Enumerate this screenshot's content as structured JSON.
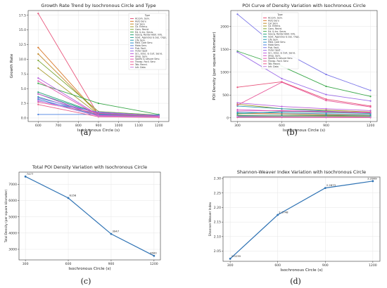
{
  "panel_labels": [
    "(a)",
    "(b)",
    "(c)",
    "(d)"
  ],
  "chart_data": [
    {
      "type": "line",
      "title": "Growth Rate Trend by Isochronous Circle and Type",
      "xlabel": "Isochronous Circle (s)",
      "ylabel": "Growth Rate",
      "x": [
        600,
        900,
        1200
      ],
      "xlim": [
        550,
        1250
      ],
      "xticks": [
        600,
        700,
        800,
        900,
        1000,
        1100,
        1200
      ],
      "ylim": [
        -0.6,
        18.3
      ],
      "yticks": [
        0.0,
        2.5,
        5.0,
        7.5,
        10.0,
        12.5,
        15.0,
        17.5
      ],
      "grid": true,
      "legend": "top-right",
      "legend_title": "Type",
      "series": [
        {
          "name": "Accom. Serv.",
          "color": "#e8537a",
          "values": [
            17.8,
            0.5,
            0.3
          ]
        },
        {
          "name": "Auto Serv.",
          "color": "#d97a2b",
          "values": [
            12.0,
            0.6,
            0.4
          ]
        },
        {
          "name": "Car Serv.",
          "color": "#c28a2a",
          "values": [
            10.9,
            0.7,
            0.4
          ]
        },
        {
          "name": "Co. Enterp.",
          "color": "#a59a2a",
          "values": [
            8.5,
            0.6,
            0.3
          ]
        },
        {
          "name": "Cons. Recrd.",
          "color": "#7aa52f",
          "values": [
            9.8,
            1.1,
            0.5
          ]
        },
        {
          "name": "Ed. & Inc. Servs.",
          "color": "#3aa84a",
          "values": [
            5.9,
            2.5,
            0.6
          ]
        },
        {
          "name": "Gourg. Rental Addr. Info.",
          "color": "#2aa37a",
          "values": [
            4.4,
            0.8,
            0.4
          ]
        },
        {
          "name": "Govt. Agencies & Soc. Orgs.",
          "color": "#26a095",
          "values": [
            4.1,
            0.7,
            0.3
          ]
        },
        {
          "name": "Life Serv.",
          "color": "#2699ae",
          "values": [
            3.6,
            0.5,
            0.2
          ]
        },
        {
          "name": "Med. Care Serv.",
          "color": "#2b8fca",
          "values": [
            3.2,
            0.4,
            0.2
          ]
        },
        {
          "name": "Moto Serv.",
          "color": "#4a80e0",
          "values": [
            0.6,
            0.6,
            0.5
          ]
        },
        {
          "name": "Pub. Facil.",
          "color": "#7a75e8",
          "values": [
            2.9,
            1.0,
            0.4
          ]
        },
        {
          "name": "Outer Spot",
          "color": "#9c6be8",
          "values": [
            3.4,
            0.9,
            0.3
          ]
        },
        {
          "name": "Sci., Educ. & Cult. Servs.",
          "color": "#bb5fdc",
          "values": [
            6.8,
            0.5,
            0.2
          ]
        },
        {
          "name": "Shop. Serv.",
          "color": "#d258c8",
          "values": [
            4.1,
            0.3,
            0.2
          ]
        },
        {
          "name": "Sports & Leisure Serv.",
          "color": "#e155b0",
          "values": [
            6.3,
            0.4,
            0.1
          ]
        },
        {
          "name": "Transp. Facil. Serv.",
          "color": "#e8589a",
          "values": [
            2.7,
            0.8,
            0.3
          ]
        },
        {
          "name": "Tab. Recrd.",
          "color": "#ea5d88",
          "values": [
            2.3,
            0.2,
            0.1
          ]
        },
        {
          "name": "Infr. Data",
          "color": "#c97fe0",
          "values": [
            3.0,
            0.3,
            0.2
          ]
        }
      ]
    },
    {
      "type": "line",
      "title": "POI Curve of Density Variation with Isochronous Circle",
      "xlabel": "Isochronous Circle (s)",
      "ylabel": "POI Density (per square kilometer)",
      "x": [
        300,
        600,
        900,
        1200
      ],
      "xlim": [
        255,
        1245
      ],
      "xticks": [
        300,
        600,
        900,
        1200
      ],
      "ylim": [
        -80,
        2350
      ],
      "yticks": [
        0,
        500,
        1000,
        1500,
        2000
      ],
      "grid": true,
      "legend": "top-right",
      "legend_title": "Type",
      "series": [
        {
          "name": "Accom. Serv.",
          "color": "#e8537a",
          "values": [
            670,
            790,
            410,
            260
          ]
        },
        {
          "name": "Auto Serv.",
          "color": "#d97a2b",
          "values": [
            100,
            90,
            70,
            55
          ]
        },
        {
          "name": "Car Serv.",
          "color": "#c28a2a",
          "values": [
            60,
            55,
            45,
            40
          ]
        },
        {
          "name": "Co. Enterp.",
          "color": "#a59a2a",
          "values": [
            300,
            200,
            170,
            130
          ]
        },
        {
          "name": "Cons. Recrd.",
          "color": "#7aa52f",
          "values": [
            40,
            35,
            30,
            25
          ]
        },
        {
          "name": "Ed. & Inc. Servs.",
          "color": "#3aa84a",
          "values": [
            1460,
            1130,
            690,
            470
          ]
        },
        {
          "name": "Gourg. Rental Addr. Info.",
          "color": "#2aa37a",
          "values": [
            90,
            140,
            120,
            100
          ]
        },
        {
          "name": "Govt. Agencies & Soc. Orgs.",
          "color": "#26a095",
          "values": [
            50,
            60,
            55,
            45
          ]
        },
        {
          "name": "Life Serv.",
          "color": "#2699ae",
          "values": [
            260,
            200,
            150,
            110
          ]
        },
        {
          "name": "Med. Care Serv.",
          "color": "#2b8fca",
          "values": [
            120,
            110,
            90,
            80
          ]
        },
        {
          "name": "Moto Serv.",
          "color": "#4a80e0",
          "values": [
            20,
            20,
            15,
            15
          ]
        },
        {
          "name": "Pub. Facil.",
          "color": "#7a75e8",
          "values": [
            2270,
            1470,
            950,
            600
          ]
        },
        {
          "name": "Outer Spot",
          "color": "#9c6be8",
          "values": [
            1440,
            860,
            510,
            370
          ]
        },
        {
          "name": "Sci., Educ. & Cult. Servs.",
          "color": "#bb5fdc",
          "values": [
            330,
            250,
            200,
            160
          ]
        },
        {
          "name": "Shop. Serv.",
          "color": "#d258c8",
          "values": [
            180,
            150,
            130,
            110
          ]
        },
        {
          "name": "Sports & Leisure Serv.",
          "color": "#e155b0",
          "values": [
            150,
            160,
            140,
            120
          ]
        },
        {
          "name": "Transp. Facil. Serv.",
          "color": "#e8589a",
          "values": [
            280,
            780,
            380,
            240
          ]
        },
        {
          "name": "Tab. Recrd.",
          "color": "#ea5d88",
          "values": [
            10,
            10,
            8,
            6
          ]
        },
        {
          "name": "Infr. Data",
          "color": "#c97fe0",
          "values": [
            30,
            25,
            20,
            18
          ]
        }
      ]
    },
    {
      "type": "line",
      "title": "Total POI Density Variation with Isochronous Circle",
      "xlabel": "Isochronous Circle (s)",
      "ylabel": "Total Density (per square kilometer)",
      "x": [
        300,
        600,
        900,
        1200
      ],
      "values": [
        7477,
        6156,
        3947,
        2600
      ],
      "data_labels": [
        "7477",
        "6156",
        "3947",
        "2600"
      ],
      "color": "#2f73b4",
      "xlim": [
        255,
        1245
      ],
      "xticks": [
        300,
        600,
        900,
        1200
      ],
      "ylim": [
        2350,
        7750
      ],
      "yticks": [
        3000,
        4000,
        5000,
        6000,
        7000
      ],
      "grid": true
    },
    {
      "type": "line",
      "title": "Shannon-Weaver Index Variation with Isochronous Circle",
      "xlabel": "Isochronous Circle (s)",
      "ylabel": "Shannon-Weaver Index",
      "x": [
        300,
        600,
        900,
        1200
      ],
      "values": [
        2.0239,
        2.1748,
        2.2673,
        2.2909
      ],
      "data_labels": [
        "2.0239",
        "2.1748",
        "2.2673",
        "2.2909"
      ],
      "color": "#2f73b4",
      "xlim": [
        255,
        1245
      ],
      "xticks": [
        300,
        600,
        900,
        1200
      ],
      "ylim": [
        2.015,
        2.305
      ],
      "yticks": [
        2.05,
        2.1,
        2.15,
        2.2,
        2.25,
        2.3
      ],
      "grid": true
    }
  ]
}
